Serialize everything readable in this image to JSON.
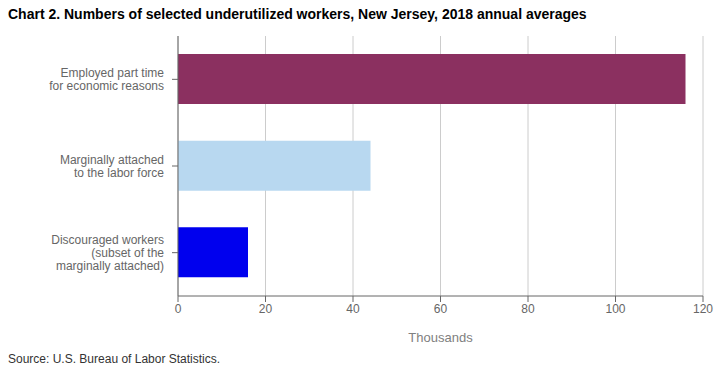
{
  "chart_data": {
    "type": "bar",
    "orientation": "horizontal",
    "title": "Chart 2. Numbers of selected underutilized workers, New Jersey, 2018 annual averages",
    "source": "Source: U.S. Bureau of Labor Statistics.",
    "categories": [
      "Discouraged workers\n(subset of the\nmarginally attached)",
      "Marginally attached\nto the labor force",
      "Employed part time\nfor economic reasons"
    ],
    "values": [
      16,
      44,
      116
    ],
    "colors": [
      "#0000ee",
      "#b8d8f0",
      "#8b3060"
    ],
    "xlabel": "Thousands",
    "xlim": [
      0,
      120
    ],
    "xticks": [
      0,
      20,
      40,
      60,
      80,
      100,
      120
    ],
    "grid": true
  }
}
